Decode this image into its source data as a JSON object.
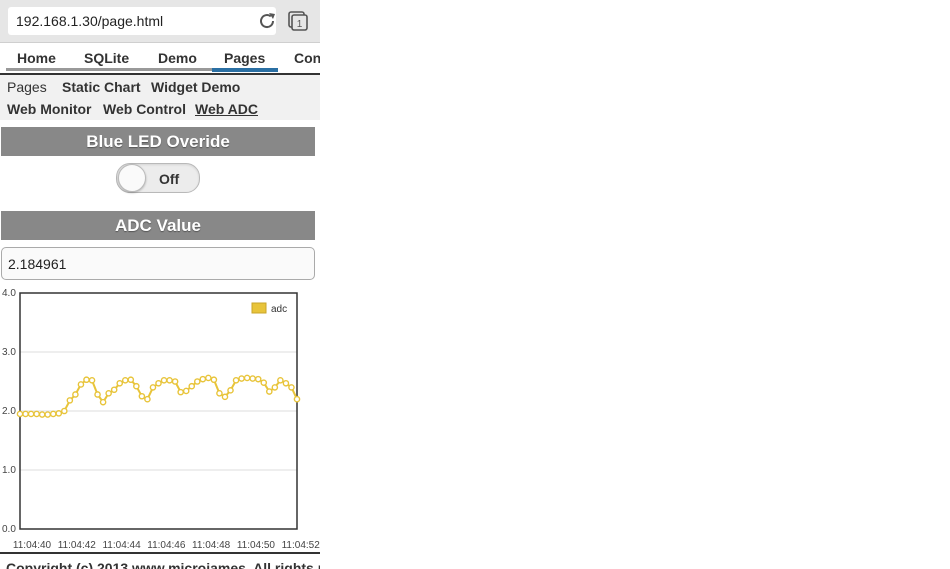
{
  "browser": {
    "url": "192.168.1.30/page.html"
  },
  "main_nav": {
    "items": [
      {
        "label": "Home"
      },
      {
        "label": "SQLite"
      },
      {
        "label": "Demo"
      },
      {
        "label": "Pages",
        "active": true
      },
      {
        "label": "Con"
      }
    ]
  },
  "sub_nav": {
    "items": [
      {
        "label": "Pages"
      },
      {
        "label": "Static Chart"
      },
      {
        "label": "Widget Demo"
      },
      {
        "label": "Web Monitor"
      },
      {
        "label": "Web Control"
      },
      {
        "label": "Web ADC",
        "active": true
      }
    ]
  },
  "led_section": {
    "title": "Blue LED Overide",
    "toggle_label": "Off",
    "toggle_on": false
  },
  "adc_section": {
    "title": "ADC Value",
    "value": "2.184961"
  },
  "footer": {
    "text": "Copyright (c) 2013 www.microjames. All rights r"
  },
  "colors": {
    "series": "#e8c43a",
    "header": "#888888",
    "nav_active": "#2a6fa3"
  },
  "chart_data": {
    "type": "line",
    "ylim": [
      0,
      4
    ],
    "yticks": [
      "0.0",
      "1.0",
      "2.0",
      "3.0",
      "4.0"
    ],
    "xticks": [
      "11:04:40",
      "11:04:42",
      "11:04:44",
      "11:04:46",
      "11:04:48",
      "11:04:50",
      "11:04:52"
    ],
    "xlim": [
      0,
      64
    ],
    "grid": true,
    "legend": "top-right",
    "series": [
      {
        "name": "adc",
        "values": [
          1.95,
          1.95,
          1.95,
          1.95,
          1.94,
          1.94,
          1.95,
          1.96,
          2.0,
          2.18,
          2.28,
          2.45,
          2.53,
          2.52,
          2.28,
          2.15,
          2.3,
          2.36,
          2.47,
          2.52,
          2.53,
          2.42,
          2.25,
          2.2,
          2.4,
          2.47,
          2.52,
          2.52,
          2.5,
          2.32,
          2.34,
          2.42,
          2.5,
          2.54,
          2.56,
          2.53,
          2.3,
          2.24,
          2.35,
          2.52,
          2.55,
          2.56,
          2.55,
          2.54,
          2.48,
          2.33,
          2.4,
          2.52,
          2.47,
          2.4,
          2.2
        ]
      }
    ]
  }
}
